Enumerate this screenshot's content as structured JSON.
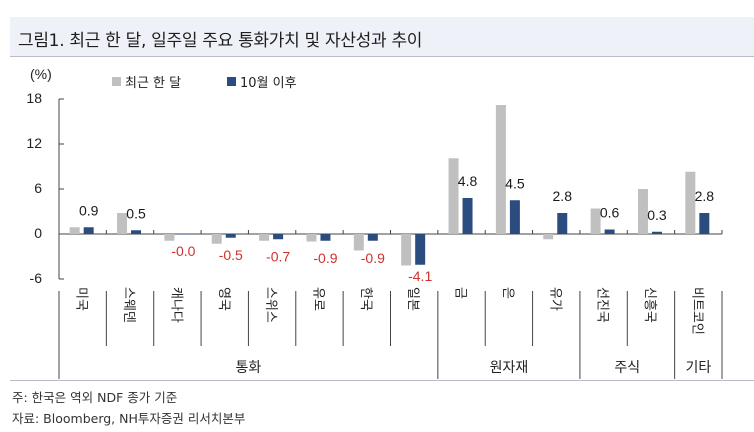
{
  "title": "그림1. 최근 한 달, 일주일 주요 통화가치 및 자산성과 추이",
  "unit_label": "(%)",
  "legend": [
    {
      "label": "최근 한 달",
      "color": "#c0c0c0"
    },
    {
      "label": "10월 이후",
      "color": "#2b4c7e"
    }
  ],
  "yticks": [
    "18",
    "12",
    "6",
    "0",
    "-6"
  ],
  "footer": {
    "note": "주: 한국은 역외 NDF 종가 기준",
    "source": "자료: Bloomberg, NH투자증권 리서치본부"
  },
  "colors": {
    "series1": "#c0c0c0",
    "series2": "#2b4c7e",
    "positive_label": "#1a1a1a",
    "negative_label": "#d0312d",
    "axis": "#444444",
    "title_bg": "#eef1f8"
  },
  "chart_data": {
    "type": "bar",
    "title": "그림1. 최근 한 달, 일주일 주요 통화가치 및 자산성과 추이",
    "xlabel": "",
    "ylabel": "(%)",
    "ylim": [
      -6,
      18
    ],
    "yticks": [
      18,
      12,
      6,
      0,
      -6
    ],
    "grid": false,
    "legend_position": "top",
    "categories": [
      "미국",
      "스웨덴",
      "캐나다",
      "영국",
      "스위스",
      "유로",
      "한국",
      "일본",
      "금",
      "은",
      "유가",
      "선진국",
      "신흥국",
      "비트코인"
    ],
    "groups": [
      {
        "label": "통화",
        "categories": [
          "미국",
          "스웨덴",
          "캐나다",
          "영국",
          "스위스",
          "유로",
          "한국",
          "일본"
        ]
      },
      {
        "label": "원자재",
        "categories": [
          "금",
          "은",
          "유가"
        ]
      },
      {
        "label": "주식",
        "categories": [
          "선진국",
          "신흥국"
        ]
      },
      {
        "label": "기타",
        "categories": [
          "비트코인"
        ]
      }
    ],
    "series": [
      {
        "name": "최근 한 달",
        "values": [
          0.9,
          2.8,
          -0.9,
          -1.3,
          -0.9,
          -1.0,
          -2.2,
          -4.2,
          10.1,
          17.2,
          -0.7,
          3.4,
          6.0,
          8.3
        ]
      },
      {
        "name": "10월 이후",
        "values": [
          0.9,
          0.5,
          -0.0,
          -0.5,
          -0.7,
          -0.9,
          -0.9,
          -4.1,
          4.8,
          4.5,
          2.8,
          0.6,
          0.3,
          2.8
        ]
      }
    ],
    "data_labels": {
      "series": "10월 이후",
      "labels": [
        "0.9",
        "0.5",
        "-0.0",
        "-0.5",
        "-0.7",
        "-0.9",
        "-0.9",
        "-4.1",
        "4.8",
        "4.5",
        "2.8",
        "0.6",
        "0.3",
        "2.8"
      ]
    }
  }
}
